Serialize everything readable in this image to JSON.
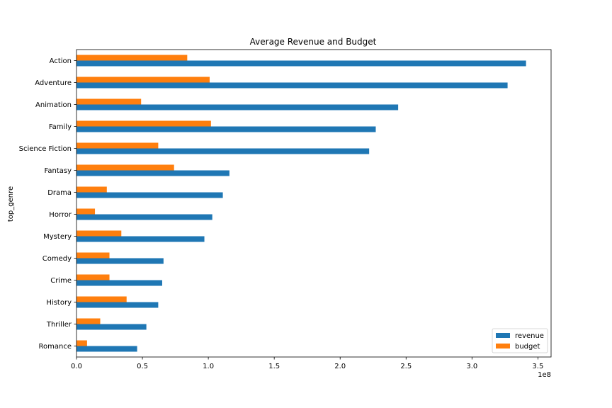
{
  "chart_data": {
    "type": "bar",
    "orientation": "horizontal",
    "title": "Average Revenue and Budget",
    "xlabel": "",
    "ylabel": "top_genre",
    "x_offset_label": "1e8",
    "xlim": [
      0,
      3.6
    ],
    "x_ticks": [
      0.0,
      0.5,
      1.0,
      1.5,
      2.0,
      2.5,
      3.0,
      3.5
    ],
    "x_tick_labels": [
      "0.0",
      "0.5",
      "1.0",
      "1.5",
      "2.0",
      "2.5",
      "3.0",
      "3.5"
    ],
    "categories": [
      "Action",
      "Adventure",
      "Animation",
      "Family",
      "Science Fiction",
      "Fantasy",
      "Drama",
      "Horror",
      "Mystery",
      "Comedy",
      "Crime",
      "History",
      "Thriller",
      "Romance"
    ],
    "series": [
      {
        "name": "revenue",
        "color": "#1f77b4",
        "values": [
          3.41,
          3.27,
          2.44,
          2.27,
          2.22,
          1.16,
          1.11,
          1.03,
          0.97,
          0.66,
          0.65,
          0.62,
          0.53,
          0.46
        ]
      },
      {
        "name": "budget",
        "color": "#ff7f0e",
        "values": [
          0.84,
          1.01,
          0.49,
          1.02,
          0.62,
          0.74,
          0.23,
          0.14,
          0.34,
          0.25,
          0.25,
          0.38,
          0.18,
          0.08
        ]
      }
    ],
    "grid": false,
    "legend_position": "lower-right"
  }
}
